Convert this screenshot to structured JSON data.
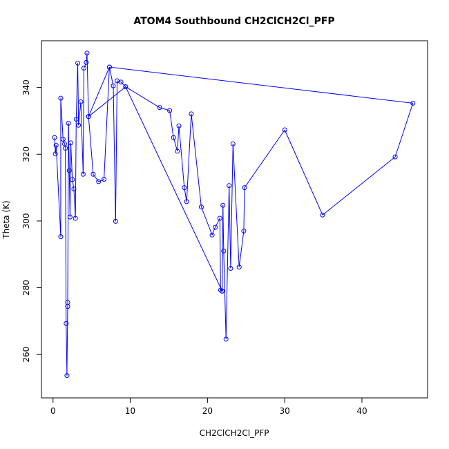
{
  "chart_data": {
    "type": "line",
    "title": "ATOM4 Southbound CH2ClCH2Cl_PFP",
    "xlabel": "CH2ClCH2Cl_PFP",
    "ylabel": "Theta (K)",
    "xlim": [
      -1.5,
      48.5
    ],
    "ylim": [
      247,
      354
    ],
    "x_ticks": [
      0,
      10,
      20,
      30,
      40
    ],
    "y_ticks": [
      260,
      280,
      300,
      320,
      340
    ],
    "grid": false,
    "line_color": "#0000ff",
    "marker": "open-circle",
    "series": [
      {
        "values": [
          [
            0.2,
            325.0
          ],
          [
            0.3,
            320.1
          ],
          [
            0.4,
            322.7
          ],
          [
            1.0,
            295.3
          ],
          [
            1.0,
            336.8
          ],
          [
            1.3,
            324.5
          ],
          [
            1.5,
            323.1
          ],
          [
            1.6,
            321.8
          ],
          [
            1.7,
            269.3
          ],
          [
            1.8,
            253.7
          ],
          [
            1.9,
            274.4
          ],
          [
            1.9,
            275.6
          ],
          [
            2.0,
            329.3
          ],
          [
            2.1,
            315.1
          ],
          [
            2.2,
            301.2
          ],
          [
            2.3,
            323.4
          ],
          [
            2.5,
            312.4
          ],
          [
            2.7,
            309.6
          ],
          [
            2.9,
            300.8
          ],
          [
            3.0,
            330.5
          ],
          [
            3.2,
            347.3
          ],
          [
            3.3,
            328.7
          ],
          [
            3.6,
            335.7
          ],
          [
            3.9,
            314.0
          ],
          [
            4.0,
            345.8
          ],
          [
            4.3,
            347.5
          ],
          [
            4.4,
            350.3
          ],
          [
            4.6,
            331.3
          ],
          [
            5.2,
            314.0
          ],
          [
            5.9,
            311.8
          ],
          [
            6.6,
            312.5
          ],
          [
            7.3,
            346.1
          ],
          [
            7.8,
            340.5
          ],
          [
            8.1,
            299.9
          ],
          [
            8.3,
            342.0
          ],
          [
            8.8,
            341.6
          ],
          [
            9.4,
            340.2
          ],
          [
            13.8,
            334.0
          ],
          [
            15.1,
            333.1
          ],
          [
            15.6,
            325.0
          ],
          [
            16.1,
            320.9
          ],
          [
            16.3,
            328.5
          ],
          [
            17.0,
            310.0
          ],
          [
            17.3,
            305.8
          ],
          [
            17.9,
            332.1
          ],
          [
            19.2,
            304.2
          ],
          [
            20.6,
            295.8
          ],
          [
            21.0,
            298.1
          ],
          [
            21.6,
            300.8
          ],
          [
            21.7,
            279.3
          ],
          [
            21.9,
            279.0
          ],
          [
            22.0,
            304.7
          ],
          [
            22.1,
            291.0
          ],
          [
            22.4,
            264.6
          ],
          [
            22.8,
            310.6
          ],
          [
            23.0,
            285.8
          ],
          [
            23.3,
            323.1
          ],
          [
            24.1,
            286.2
          ],
          [
            24.7,
            297.0
          ],
          [
            24.8,
            310.0
          ],
          [
            30.0,
            327.3
          ],
          [
            34.9,
            301.8
          ],
          [
            44.3,
            319.2
          ],
          [
            46.6,
            335.3
          ],
          [
            7.3,
            346.1
          ],
          [
            4.6,
            331.3
          ],
          [
            9.4,
            340.2
          ],
          [
            21.9,
            279.0
          ]
        ]
      }
    ]
  }
}
